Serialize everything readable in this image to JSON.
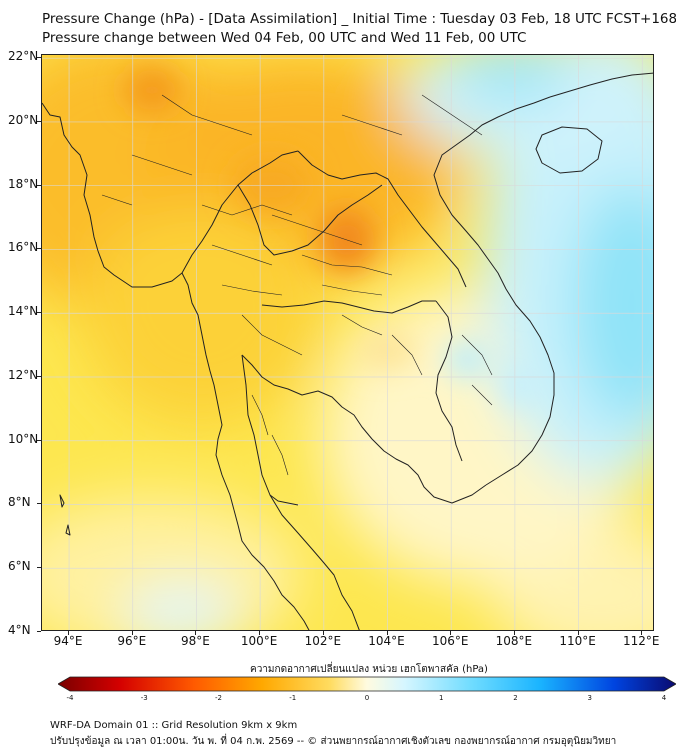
{
  "title_line1": "Pressure Change (hPa) - [Data Assimilation] _ Initial Time : Tuesday 03 Feb, 18 UTC FCST+168",
  "title_line2": "Pressure change between Wed 04 Feb, 00 UTC and Wed 11 Feb, 00 UTC",
  "lat_labels": [
    "22°N",
    "20°N",
    "18°N",
    "16°N",
    "14°N",
    "12°N",
    "10°N",
    "8°N",
    "6°N",
    "4°N"
  ],
  "lon_labels": [
    "94°E",
    "96°E",
    "98°E",
    "100°E",
    "102°E",
    "104°E",
    "106°E",
    "108°E",
    "110°E",
    "112°E"
  ],
  "colorbar": {
    "title": "ความกดอากาศเปลี่ยนแปลง หน่วย เฮกโตพาสคัล (hPa)",
    "tick_labels": [
      "-4",
      "-3",
      "-2",
      "-1",
      "0",
      "1",
      "2",
      "3",
      "4"
    ],
    "range": [
      -4,
      4
    ],
    "colors": [
      "#7a0000",
      "#d40000",
      "#ff6a00",
      "#ffb400",
      "#ffe27a",
      "#fffbe0",
      "#d6f6ff",
      "#6fdcff",
      "#1ab4ff",
      "#0044e0",
      "#0a0a70"
    ]
  },
  "footer_line1": "WRF-DA Domain 01 :: Grid Resolution 9km x 9km",
  "footer_line2": "ปรับปรุงข้อมูล ณ เวลา 01:00น. วัน พ. ที่ 04 ก.พ. 2569 -- © ส่วนพยากรณ์อากาศเชิงตัวเลข กองพยากรณ์อากาศ กรมอุตุนิยมวิทยา"
}
